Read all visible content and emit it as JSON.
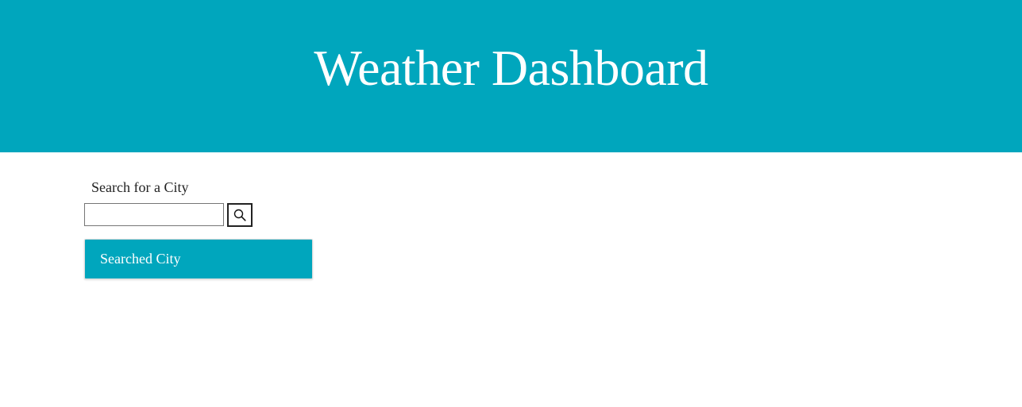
{
  "header": {
    "title": "Weather Dashboard"
  },
  "search": {
    "label": "Search for a City",
    "input_value": "",
    "placeholder": "",
    "button_icon": "search-icon"
  },
  "history": {
    "items": [
      {
        "label": "Searched City"
      }
    ]
  },
  "colors": {
    "accent": "#00a6bd",
    "header_text": "#ffffff",
    "body_text": "#222222"
  }
}
